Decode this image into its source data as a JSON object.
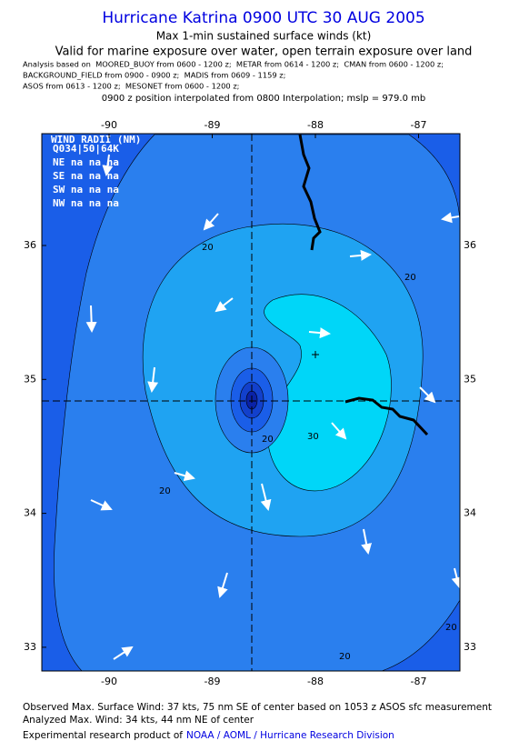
{
  "header": {
    "title": "Hurricane Katrina 0900 UTC 30 AUG 2005",
    "subtitle": "Max 1-min sustained surface winds (kt)",
    "validity": "Valid for marine exposure over water, open terrain exposure over land",
    "analysis_sources": [
      "Analysis based on  MOORED_BUOY from 0600 - 1200 z;  METAR from 0614 - 1200 z;  CMAN from 0600 - 1200 z;",
      "BACKGROUND_FIELD from 0900 - 0900 z;  MADIS from 0609 - 1159 z;",
      "ASOS from 0613 - 1200 z;  MESONET from 0600 - 1200 z;"
    ],
    "position_note": "0900 z position interpolated from 0800 Interpolation; mslp = 979.0 mb"
  },
  "map": {
    "lon_ticks": [
      -90,
      -89,
      -88,
      -87
    ],
    "lat_ticks": [
      36,
      35,
      34,
      33
    ],
    "contour_labels": [
      20,
      20,
      20,
      20,
      20,
      20,
      30
    ],
    "wind_radii": {
      "title": "WIND RADII (NM)",
      "header": "Q034|50|64K",
      "rows": [
        "NE na na na",
        "SE na na na",
        "SW na na na",
        "NW na na na"
      ]
    }
  },
  "footer": {
    "observed": "Observed Max. Surface Wind: 37 kts, 75 nm SE of center based on 1053 z ASOS sfc measurement",
    "analyzed": "Analyzed Max. Wind: 34 kts, 44 nm NE of center",
    "credit": "Experimental research product of",
    "link": "NOAA / AOML / Hurricane Research Division"
  }
}
